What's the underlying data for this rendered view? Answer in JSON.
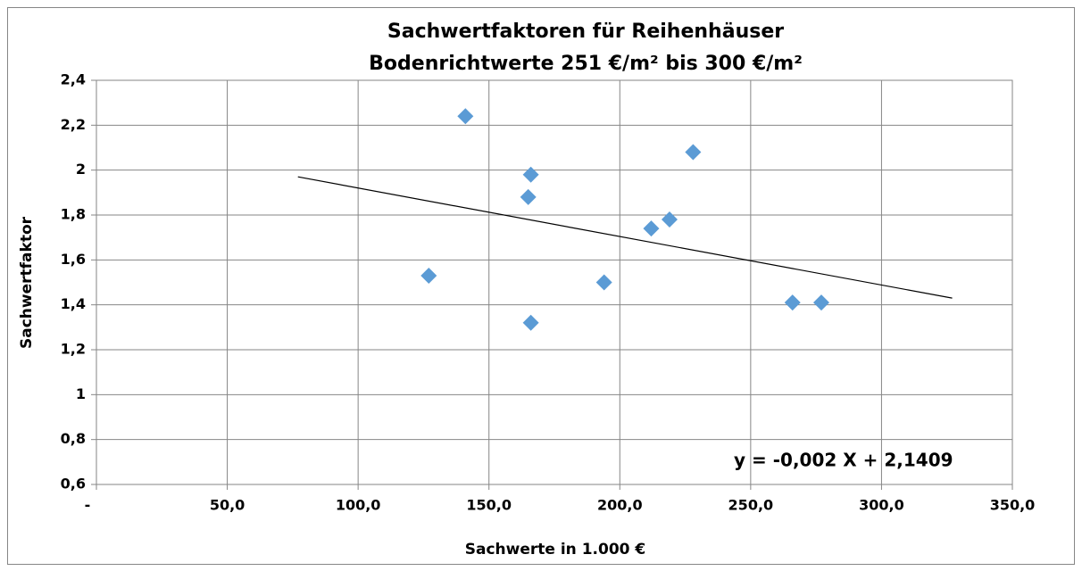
{
  "chart_data": {
    "type": "scatter",
    "title": "Sachwertfaktoren für Reihenhäuser",
    "subtitle": "Bodenrichtwerte 251 €/m² bis 300 €/m²",
    "x_label": "Sachwerte in 1.000 €",
    "y_label": "Sachwertfaktor",
    "x": [
      141,
      166,
      165,
      228,
      219,
      212,
      127,
      194,
      166,
      266,
      277
    ],
    "values": [
      2.24,
      1.98,
      1.88,
      2.08,
      1.78,
      1.74,
      1.53,
      1.5,
      1.32,
      1.41,
      1.41
    ],
    "color": "#5b9bd5",
    "trendline": {
      "x": [
        77,
        327
      ],
      "values": [
        1.97,
        1.43
      ],
      "color": "#000000",
      "label": "y = -0,002 X + 2,1409"
    },
    "xlim": [
      0,
      350
    ],
    "xticks": [
      {
        "value": 0,
        "label": "-"
      },
      {
        "value": 50,
        "label": "50,0"
      },
      {
        "value": 100,
        "label": "100,0"
      },
      {
        "value": 150,
        "label": "150,0"
      },
      {
        "value": 200,
        "label": "200,0"
      },
      {
        "value": 250,
        "label": "250,0"
      },
      {
        "value": 300,
        "label": "300,0"
      },
      {
        "value": 350,
        "label": "350,0"
      }
    ],
    "ylim": [
      0.6,
      2.4
    ],
    "yticks": [
      {
        "value": 0.6,
        "label": "0,6"
      },
      {
        "value": 0.8,
        "label": "0,8"
      },
      1,
      {
        "value": 1.2,
        "label": "1,2"
      },
      {
        "value": 1.4,
        "label": "1,4"
      },
      {
        "value": 1.6,
        "label": "1,6"
      },
      {
        "value": 1.8,
        "label": "1,8"
      },
      2,
      {
        "value": 2.2,
        "label": "2,2"
      },
      {
        "value": 2.4,
        "label": "2,4"
      }
    ],
    "grid": true
  }
}
